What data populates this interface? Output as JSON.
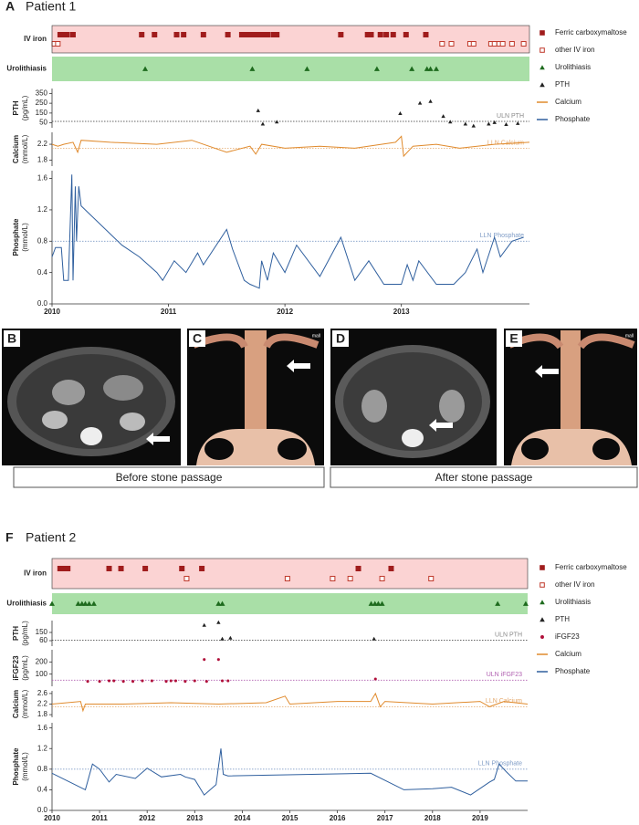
{
  "chart_data": [
    {
      "type": "timeline",
      "panel_label": "A",
      "title": "Patient 1",
      "xlim": [
        2010,
        2014.1
      ],
      "xticks": [
        2010,
        2011,
        2012,
        2013
      ],
      "tracks": [
        {
          "label": "IV iron",
          "band_color": "#fbd3d3",
          "series": [
            {
              "name": "Ferric carboxymaltose",
              "color": "#a01c1c",
              "marker": "square",
              "x": [
                2010.07,
                2010.1,
                2010.13,
                2010.18,
                2010.77,
                2010.88,
                2011.07,
                2011.13,
                2011.3,
                2011.51,
                2011.63,
                2011.66,
                2011.7,
                2011.73,
                2011.76,
                2011.79,
                2011.82,
                2011.85,
                2011.9,
                2011.93,
                2012.48,
                2012.71,
                2012.74,
                2012.82,
                2012.87,
                2012.93,
                2013.04,
                2013.21
              ]
            },
            {
              "name": "other IV iron",
              "color": "#c0392b",
              "marker": "open-square",
              "x": [
                2010.02,
                2010.05,
                2013.35,
                2013.43,
                2013.59,
                2013.62,
                2013.77,
                2013.8,
                2013.84,
                2013.87,
                2013.95,
                2014.05
              ]
            }
          ]
        },
        {
          "label": "Urolithiasis",
          "band_color": "#a9dfa7",
          "series": [
            {
              "name": "Urolithiasis",
              "color": "#1e6b1e",
              "marker": "triangle",
              "x": [
                2010.8,
                2011.72,
                2012.19,
                2012.79,
                2013.09,
                2013.22,
                2013.25,
                2013.3
              ]
            }
          ]
        }
      ],
      "panels": [
        {
          "ylabel": "PTH",
          "yunit": "(pg/mL)",
          "ylim": [
            0,
            400
          ],
          "yticks": [
            50,
            150,
            250,
            350
          ],
          "refline": {
            "label": "ULN PTH",
            "value": 65,
            "color": "#888888"
          },
          "series": [
            {
              "name": "PTH",
              "color": "#222222",
              "marker": "triangle",
              "x": [
                2011.77,
                2011.81,
                2011.93,
                2012.99,
                2013.16,
                2013.25,
                2013.36,
                2013.42,
                2013.55,
                2013.62,
                2013.75,
                2013.8,
                2013.9,
                2014.0
              ],
              "values": [
                176,
                40,
                60,
                147,
                253,
                270,
                118,
                60,
                40,
                20,
                40,
                55,
                35,
                45
              ]
            }
          ]
        },
        {
          "ylabel": "Calcium",
          "yunit": "(mmol/L)",
          "ylim": [
            1.65,
            2.5
          ],
          "yticks": [
            1.8,
            2.2
          ],
          "refline": {
            "label": "LLN Calcium",
            "value": 2.1,
            "color": "#e4a76a"
          },
          "series": [
            {
              "name": "Calcium",
              "color": "#e08a2c",
              "marker": "line",
              "x": [
                2010.0,
                2010.05,
                2010.1,
                2010.18,
                2010.22,
                2010.25,
                2010.5,
                2010.9,
                2011.2,
                2011.5,
                2011.7,
                2011.75,
                2011.8,
                2012.0,
                2012.3,
                2012.6,
                2012.95,
                2013.0,
                2013.02,
                2013.1,
                2013.3,
                2013.5,
                2013.8,
                2014.1
              ],
              "values": [
                2.2,
                2.15,
                2.2,
                2.25,
                2.0,
                2.3,
                2.25,
                2.2,
                2.3,
                2.0,
                2.15,
                1.95,
                2.2,
                2.1,
                2.15,
                2.1,
                2.25,
                2.4,
                1.9,
                2.15,
                2.2,
                2.1,
                2.2,
                2.25
              ]
            }
          ]
        },
        {
          "ylabel": "Phosphate",
          "yunit": "(mmol/L)",
          "ylim": [
            0,
            1.7
          ],
          "yticks": [
            {
              "value": 0,
              "label": "0.0"
            },
            0.4,
            0.8,
            1.2,
            1.6
          ],
          "refline": {
            "label": "LLN Phosphate",
            "value": 0.8,
            "color": "#7f9cc6"
          },
          "series": [
            {
              "name": "Phosphate",
              "color": "#2f5f9e",
              "marker": "line",
              "x": [
                2010.0,
                2010.03,
                2010.08,
                2010.1,
                2010.14,
                2010.17,
                2010.18,
                2010.2,
                2010.21,
                2010.23,
                2010.25,
                2010.6,
                2010.75,
                2010.9,
                2010.95,
                2011.05,
                2011.15,
                2011.25,
                2011.3,
                2011.5,
                2011.55,
                2011.65,
                2011.7,
                2011.78,
                2011.8,
                2011.85,
                2011.9,
                2012.0,
                2012.1,
                2012.3,
                2012.48,
                2012.6,
                2012.72,
                2012.85,
                2013.0,
                2013.05,
                2013.1,
                2013.15,
                2013.3,
                2013.45,
                2013.55,
                2013.65,
                2013.7,
                2013.8,
                2013.85,
                2013.95,
                2014.05
              ],
              "values": [
                0.6,
                0.72,
                0.72,
                0.3,
                0.3,
                1.65,
                0.3,
                1.5,
                0.8,
                1.5,
                1.25,
                0.75,
                0.6,
                0.4,
                0.3,
                0.55,
                0.4,
                0.65,
                0.5,
                0.95,
                0.7,
                0.3,
                0.25,
                0.2,
                0.55,
                0.3,
                0.65,
                0.4,
                0.75,
                0.35,
                0.85,
                0.3,
                0.55,
                0.25,
                0.25,
                0.5,
                0.3,
                0.55,
                0.25,
                0.25,
                0.4,
                0.7,
                0.4,
                0.85,
                0.6,
                0.8,
                0.85
              ]
            }
          ]
        }
      ]
    },
    {
      "type": "timeline",
      "panel_label": "F",
      "title": "Patient 2",
      "xlim": [
        2010,
        2020
      ],
      "xticks": [
        2010,
        2011,
        2012,
        2013,
        2014,
        2015,
        2016,
        2017,
        2018,
        2019
      ],
      "tracks": [
        {
          "label": "IV iron",
          "band_color": "#fbd3d3",
          "series": [
            {
              "name": "Ferric carboxymaltose",
              "color": "#a01c1c",
              "marker": "square",
              "x": [
                2010.17,
                2010.25,
                2010.33,
                2011.2,
                2011.45,
                2011.96,
                2012.73,
                2013.15,
                2016.44,
                2017.13
              ]
            },
            {
              "name": "other IV iron",
              "color": "#c0392b",
              "marker": "open-square",
              "x": [
                2012.83,
                2014.95,
                2015.9,
                2016.27,
                2016.94,
                2017.97
              ]
            }
          ]
        },
        {
          "label": "Urolithiasis",
          "band_color": "#a9dfa7",
          "series": [
            {
              "name": "Urolithiasis",
              "color": "#1e6b1e",
              "marker": "triangle",
              "x": [
                2010.0,
                2010.55,
                2010.63,
                2010.7,
                2010.78,
                2010.88,
                2013.5,
                2013.58,
                2016.71,
                2016.79,
                2016.86,
                2016.94,
                2019.37,
                2019.96
              ]
            }
          ]
        }
      ],
      "panels": [
        {
          "ylabel": "PTH",
          "yunit": "(pg/mL)",
          "ylim": [
            0,
            280
          ],
          "yticks": [
            60,
            150
          ],
          "refline": {
            "label": "ULN PTH",
            "value": 65,
            "color": "#888888"
          },
          "series": [
            {
              "name": "PTH",
              "color": "#222222",
              "marker": "triangle",
              "x": [
                2013.2,
                2013.5,
                2013.58,
                2013.75,
                2016.77
              ],
              "values": [
                230,
                260,
                80,
                90,
                80
              ]
            }
          ]
        },
        {
          "ylabel": "iFGF23",
          "yunit": "(pg/mL)",
          "ylim": [
            0,
            300
          ],
          "yticks": [
            100,
            200
          ],
          "refline": {
            "label": "ULN iFGF23",
            "value": 50,
            "color": "#b05fb0"
          },
          "series": [
            {
              "name": "iFGF23",
              "color": "#b0103a",
              "marker": "dot",
              "x": [
                2010.75,
                2011.0,
                2011.2,
                2011.3,
                2011.5,
                2011.7,
                2011.9,
                2012.1,
                2012.4,
                2012.5,
                2012.6,
                2012.8,
                2013.0,
                2013.2,
                2013.25,
                2013.5,
                2013.58,
                2013.7,
                2016.8
              ],
              "values": [
                40,
                40,
                45,
                45,
                40,
                40,
                45,
                45,
                40,
                45,
                45,
                40,
                45,
                220,
                40,
                220,
                45,
                45,
                60
              ]
            }
          ]
        },
        {
          "ylabel": "Calcium",
          "yunit": "(mmol/L)",
          "ylim": [
            1.7,
            2.7
          ],
          "yticks": [
            1.8,
            2.2,
            2.6
          ],
          "refline": {
            "label": "LLN Calcium",
            "value": 2.1,
            "color": "#e4a76a"
          },
          "series": [
            {
              "name": "Calcium",
              "color": "#e08a2c",
              "marker": "line",
              "x": [
                2010.0,
                2010.6,
                2010.65,
                2010.7,
                2011.5,
                2012.5,
                2013.5,
                2014.5,
                2014.9,
                2015.0,
                2016.0,
                2016.7,
                2016.8,
                2016.9,
                2017.0,
                2018.0,
                2019.0,
                2019.2,
                2019.5,
                2020.0
              ],
              "values": [
                2.2,
                2.3,
                1.95,
                2.2,
                2.2,
                2.25,
                2.2,
                2.25,
                2.5,
                2.2,
                2.3,
                2.3,
                2.6,
                2.1,
                2.3,
                2.2,
                2.3,
                2.1,
                2.3,
                2.2
              ]
            }
          ]
        },
        {
          "ylabel": "Phosphate",
          "yunit": "(mmol/L)",
          "ylim": [
            0,
            1.7
          ],
          "yticks": [
            {
              "value": 0,
              "label": "0.0"
            },
            0.4,
            0.8,
            1.2,
            1.6
          ],
          "refline": {
            "label": "LLN Phosphate",
            "value": 0.8,
            "color": "#7f9cc6"
          },
          "series": [
            {
              "name": "Phosphate",
              "color": "#2f5f9e",
              "marker": "line",
              "x": [
                2010.0,
                2010.7,
                2010.85,
                2011.0,
                2011.2,
                2011.35,
                2011.75,
                2012.0,
                2012.3,
                2012.7,
                2012.8,
                2013.0,
                2013.2,
                2013.45,
                2013.55,
                2013.6,
                2013.7,
                2016.7,
                2017.4,
                2018.0,
                2018.4,
                2018.8,
                2019.2,
                2019.3,
                2019.4,
                2019.55,
                2019.75,
                2020.0
              ],
              "values": [
                0.72,
                0.4,
                0.9,
                0.8,
                0.55,
                0.7,
                0.62,
                0.82,
                0.65,
                0.7,
                0.65,
                0.6,
                0.3,
                0.5,
                1.2,
                0.7,
                0.67,
                0.72,
                0.4,
                0.42,
                0.45,
                0.3,
                0.55,
                0.6,
                0.9,
                0.75,
                0.57,
                0.57
              ]
            }
          ]
        }
      ]
    }
  ],
  "images": [
    {
      "letter": "B"
    },
    {
      "letter": "C",
      "note": "mall"
    },
    {
      "letter": "D"
    },
    {
      "letter": "E",
      "note": "mall"
    }
  ],
  "captions": [
    "Before stone passage",
    "After stone passage"
  ]
}
